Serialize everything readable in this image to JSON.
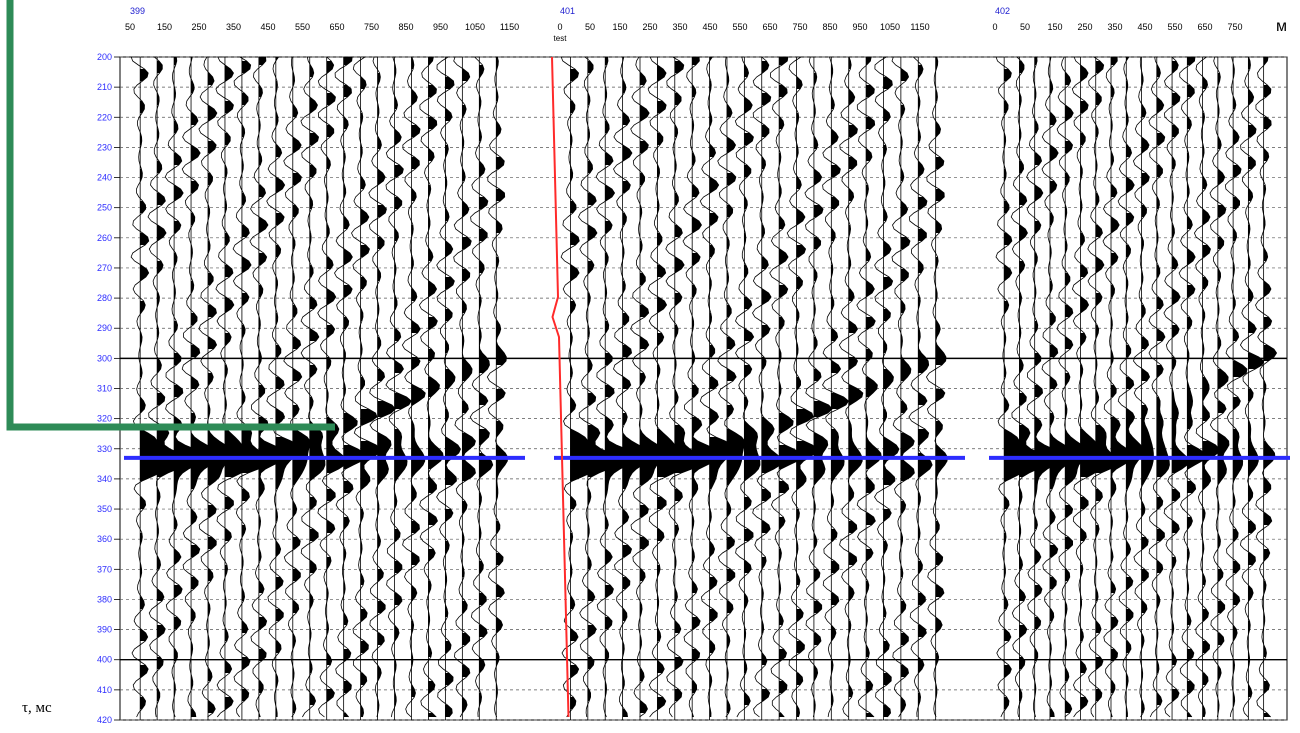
{
  "chart_data": {
    "type": "seismic-wiggle",
    "y_axis": {
      "label": "τ, мс",
      "ticks": [
        200,
        210,
        220,
        230,
        240,
        250,
        260,
        270,
        280,
        290,
        300,
        310,
        320,
        330,
        340,
        350,
        360,
        370,
        380,
        390,
        400,
        410,
        420
      ],
      "range": [
        200,
        420
      ]
    },
    "x_unit": "м",
    "panels": [
      {
        "id": "399",
        "ticks": [
          "50",
          "150",
          "250",
          "350",
          "450",
          "550",
          "650",
          "750",
          "850",
          "950",
          "1050",
          "1150"
        ],
        "traces": 22,
        "trace_extent_ms": {
          "start": 200,
          "end": 420
        },
        "hyperbola_apex_ms": 333
      },
      {
        "id": "401",
        "ticks": [
          "0",
          "50",
          "150",
          "250",
          "350",
          "450",
          "550",
          "650",
          "750",
          "850",
          "950",
          "1050",
          "1150"
        ],
        "tick_sub_label": "test",
        "traces": 22,
        "hyperbola_apex_ms": 333
      },
      {
        "id": "402",
        "ticks": [
          "0",
          "50",
          "150",
          "250",
          "350",
          "450",
          "550",
          "650",
          "750"
        ],
        "traces": 18,
        "hyperbola_apex_ms": 333
      }
    ],
    "horizon_line_ms": 333,
    "bold_grid_ms": [
      300,
      400
    ],
    "colors": {
      "horizon": "#2d2dff",
      "marker_line": "#ff2a2a",
      "bracket": "#2e8b57",
      "tick_label": "#2e2eff",
      "panel_label": "#2020d0"
    }
  }
}
